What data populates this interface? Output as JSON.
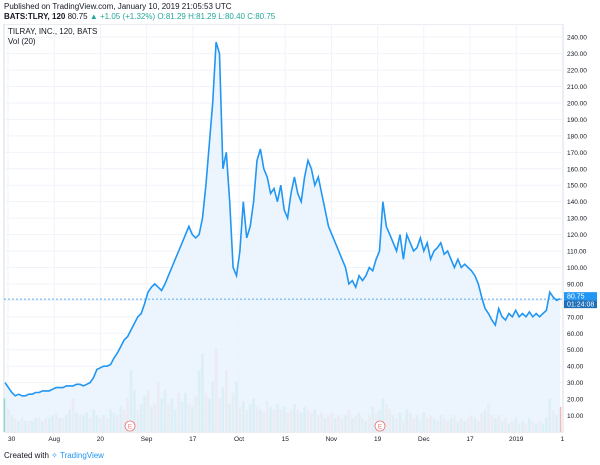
{
  "header": {
    "published": "Published on TradingView.com, January 10, 2019 21:05:53 UTC",
    "symbol_exchange": "BATS:TLRY, 120",
    "last": "80.75",
    "change": "▲ +1.05 (+1.32%)",
    "ohlc": "O:81.29 H:81.29 L:80.40 C:80.75"
  },
  "legend": {
    "title": "TILRAY, INC., 120, BATS",
    "vol": "Vol (20)"
  },
  "badges": {
    "price": "80.75",
    "countdown": "01:24:08"
  },
  "footer": {
    "created_with": "Created with",
    "brand": "TradingView"
  },
  "colors": {
    "line": "#2196f3",
    "area": "#e9f3fd",
    "vol_up": "#7ccdc3",
    "vol_down": "#f7a8a8",
    "badge_price": "#2196f3",
    "badge_time": "#1e6fb8"
  },
  "chart_data": {
    "type": "line",
    "title": "TILRAY, INC., 120, BATS",
    "ylim": [
      0,
      248
    ],
    "yticks": [
      "10.00",
      "20.00",
      "30.00",
      "40.00",
      "50.00",
      "60.00",
      "70.00",
      "80.00",
      "90.00",
      "100.00",
      "110.00",
      "120.00",
      "130.00",
      "140.00",
      "150.00",
      "160.00",
      "170.00",
      "180.00",
      "190.00",
      "200.00",
      "210.00",
      "220.00",
      "230.00",
      "240.00"
    ],
    "xticks": [
      "30",
      "Aug",
      "20",
      "Sep",
      "17",
      "Oct",
      "15",
      "Nov",
      "19",
      "Dec",
      "17",
      "2019",
      "1"
    ],
    "earnings_markers": [
      "E",
      "E"
    ],
    "price": [
      30,
      27,
      24,
      22,
      23,
      22,
      22,
      23,
      23,
      24,
      24,
      25,
      25,
      25,
      26,
      27,
      27,
      27,
      28,
      28,
      28,
      29,
      29,
      28,
      29,
      30,
      33,
      38,
      39,
      40,
      40,
      41,
      45,
      48,
      52,
      56,
      58,
      62,
      66,
      70,
      72,
      78,
      85,
      88,
      90,
      88,
      86,
      90,
      95,
      100,
      105,
      110,
      115,
      120,
      125,
      120,
      118,
      120,
      130,
      150,
      175,
      200,
      237,
      230,
      160,
      170,
      140,
      100,
      95,
      110,
      140,
      118,
      125,
      140,
      165,
      172,
      160,
      155,
      145,
      148,
      140,
      150,
      135,
      130,
      145,
      155,
      145,
      140,
      155,
      165,
      160,
      150,
      155,
      145,
      135,
      125,
      120,
      115,
      110,
      105,
      100,
      90,
      92,
      88,
      95,
      92,
      95,
      100,
      98,
      105,
      110,
      140,
      125,
      120,
      115,
      110,
      120,
      105,
      120,
      115,
      110,
      112,
      118,
      110,
      115,
      105,
      110,
      112,
      115,
      108,
      110,
      105,
      100,
      105,
      100,
      102,
      100,
      98,
      95,
      90,
      82,
      75,
      72,
      68,
      65,
      75,
      70,
      68,
      72,
      70,
      74,
      70,
      72,
      70,
      73,
      70,
      72,
      70,
      72,
      74,
      85,
      82,
      80,
      81
    ],
    "volume": [
      12,
      8,
      6,
      5,
      4,
      5,
      4,
      4,
      4,
      5,
      5,
      4,
      5,
      5,
      6,
      7,
      5,
      5,
      6,
      8,
      12,
      7,
      6,
      6,
      7,
      5,
      8,
      6,
      5,
      6,
      5,
      8,
      7,
      6,
      9,
      8,
      12,
      22,
      15,
      8,
      10,
      13,
      15,
      9,
      10,
      18,
      12,
      15,
      10,
      12,
      8,
      14,
      11,
      14,
      10,
      9,
      13,
      22,
      28,
      14,
      12,
      18,
      30,
      12,
      16,
      22,
      10,
      14,
      18,
      9,
      11,
      8,
      10,
      12,
      9,
      8,
      7,
      11,
      9,
      8,
      10,
      8,
      9,
      7,
      8,
      10,
      8,
      7,
      9,
      8,
      7,
      8,
      6,
      7,
      5,
      6,
      7,
      5,
      6,
      5,
      6,
      8,
      5,
      6,
      7,
      5,
      4,
      6,
      9,
      7,
      8,
      12,
      10,
      8,
      6,
      5,
      7,
      4,
      8,
      7,
      5,
      6,
      4,
      7,
      5,
      6,
      5,
      4,
      6,
      5,
      4,
      5,
      6,
      4,
      5,
      4,
      5,
      6,
      5,
      4,
      7,
      8,
      10,
      6,
      5,
      6,
      4,
      5,
      3,
      4,
      5,
      3,
      4,
      3,
      5,
      4,
      3,
      4,
      3,
      5,
      12,
      8,
      6,
      9
    ],
    "volume_up": [
      true,
      false,
      true,
      false,
      true,
      false,
      true,
      false,
      true,
      true,
      false,
      true,
      false,
      true,
      true,
      false,
      true,
      false,
      true,
      true,
      false,
      true,
      false,
      true,
      true,
      false,
      true,
      true,
      false,
      true,
      false,
      true,
      true,
      false,
      true,
      false,
      false,
      true,
      true,
      false,
      true,
      true,
      false,
      true,
      false,
      false,
      true,
      true,
      false,
      true,
      true,
      false,
      true,
      true,
      false,
      true,
      false,
      true,
      true,
      false,
      true,
      true,
      false,
      false,
      true,
      false,
      true,
      false,
      true,
      false,
      true,
      false,
      true,
      true,
      false,
      true,
      false,
      false,
      true,
      false,
      true,
      false,
      true,
      false,
      false,
      true,
      false,
      true,
      true,
      false,
      false,
      true,
      false,
      false,
      true,
      false,
      false,
      true,
      false,
      false,
      true,
      false,
      true,
      false,
      true,
      false,
      true,
      false,
      true,
      false,
      true,
      true,
      false,
      false,
      true,
      false,
      true,
      false,
      true,
      false,
      false,
      true,
      false,
      true,
      false,
      false,
      true,
      false,
      true,
      false,
      false,
      true,
      false,
      true,
      false,
      true,
      false,
      false,
      true,
      false,
      false,
      true,
      false,
      false,
      true,
      false,
      true,
      false,
      true,
      false,
      true,
      false,
      true,
      false,
      true,
      false,
      true,
      false,
      true,
      true,
      true,
      false,
      true,
      false
    ]
  }
}
